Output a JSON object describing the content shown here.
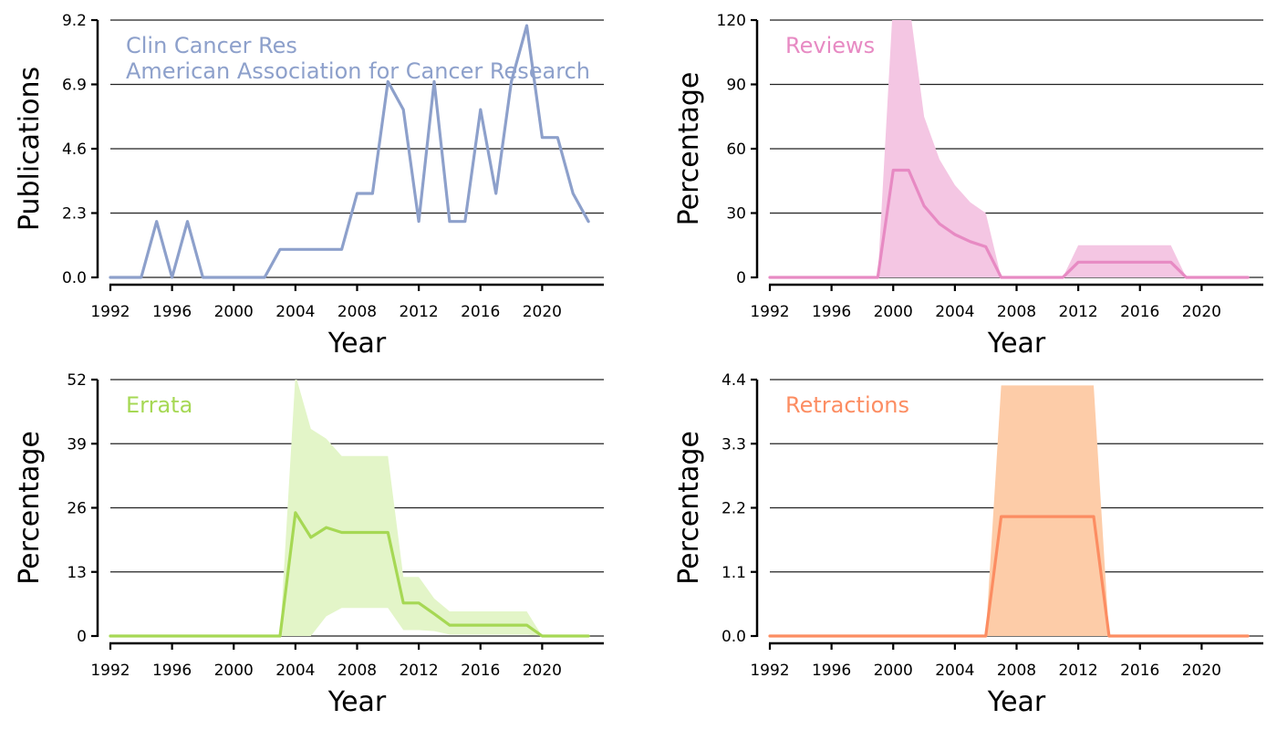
{
  "chart_data": [
    {
      "type": "line",
      "title_lines": [
        "Clin Cancer Res",
        "American Association for Cancer Research"
      ],
      "xlabel": "Year",
      "ylabel": "Publications",
      "color": "#8da0cb",
      "band_color": "",
      "x_ticks": [
        1992,
        1996,
        2000,
        2004,
        2008,
        2012,
        2016,
        2020
      ],
      "y_ticks": [
        0.0,
        2.3,
        4.6,
        6.9,
        9.2
      ],
      "y_tick_labels": [
        "0.0",
        "2.3",
        "4.6",
        "6.9",
        "9.2"
      ],
      "xlim": [
        1992,
        2024
      ],
      "ylim": [
        0,
        9.2
      ],
      "grid": "horizontal",
      "x": [
        1992,
        1993,
        1994,
        1995,
        1996,
        1997,
        1998,
        1999,
        2000,
        2001,
        2002,
        2003,
        2004,
        2005,
        2006,
        2007,
        2008,
        2009,
        2010,
        2011,
        2012,
        2013,
        2014,
        2015,
        2016,
        2017,
        2018,
        2019,
        2020,
        2021,
        2022,
        2023
      ],
      "values": [
        0,
        0,
        0,
        2,
        0,
        2,
        0,
        0,
        0,
        0,
        0,
        1,
        1,
        1,
        1,
        1,
        3,
        3,
        7,
        6,
        2,
        7,
        2,
        2,
        6,
        3,
        7,
        9,
        5,
        5,
        3,
        2
      ]
    },
    {
      "type": "line",
      "title_lines": [
        "Reviews"
      ],
      "xlabel": "Year",
      "ylabel": "Percentage",
      "color": "#e78ac3",
      "band_color": "#f4c6e3",
      "x_ticks": [
        1992,
        1996,
        2000,
        2004,
        2008,
        2012,
        2016,
        2020
      ],
      "y_ticks": [
        0,
        30,
        60,
        90,
        120
      ],
      "y_tick_labels": [
        "0",
        "30",
        "60",
        "90",
        "120"
      ],
      "xlim": [
        1992,
        2024
      ],
      "ylim": [
        0,
        120
      ],
      "grid": "horizontal",
      "x": [
        1992,
        1993,
        1994,
        1995,
        1996,
        1997,
        1998,
        1999,
        2000,
        2001,
        2002,
        2003,
        2004,
        2005,
        2006,
        2007,
        2008,
        2009,
        2010,
        2011,
        2012,
        2013,
        2014,
        2015,
        2016,
        2017,
        2018,
        2019,
        2020,
        2021,
        2022,
        2023
      ],
      "values": [
        0,
        0,
        0,
        0,
        0,
        0,
        0,
        0,
        50,
        50,
        33.3,
        25,
        20,
        16.7,
        14.3,
        0,
        0,
        0,
        0,
        0,
        7.1,
        7.1,
        7.1,
        7.1,
        7.1,
        7.1,
        7.1,
        0,
        0,
        0,
        0,
        0
      ],
      "lower": [
        0,
        0,
        0,
        0,
        0,
        0,
        0,
        0,
        0,
        0,
        0,
        0,
        0,
        0,
        0,
        0,
        0,
        0,
        0,
        0,
        0,
        0,
        0,
        0,
        0,
        0,
        0,
        0,
        0,
        0,
        0,
        0
      ],
      "upper": [
        0,
        0,
        0,
        0,
        0,
        0,
        0,
        0,
        130,
        130,
        75,
        55,
        43,
        35,
        30,
        0,
        0,
        0,
        0,
        0,
        15,
        15,
        15,
        15,
        15,
        15,
        15,
        0,
        0,
        0,
        0,
        0
      ]
    },
    {
      "type": "line",
      "title_lines": [
        "Errata"
      ],
      "xlabel": "Year",
      "ylabel": "Percentage",
      "color": "#a6d854",
      "band_color": "#e3f5c8",
      "x_ticks": [
        1992,
        1996,
        2000,
        2004,
        2008,
        2012,
        2016,
        2020
      ],
      "y_ticks": [
        0,
        13,
        26,
        39,
        52
      ],
      "y_tick_labels": [
        "0",
        "13",
        "26",
        "39",
        "52"
      ],
      "xlim": [
        1992,
        2024
      ],
      "ylim": [
        0,
        52
      ],
      "grid": "horizontal",
      "x": [
        1992,
        1993,
        1994,
        1995,
        1996,
        1997,
        1998,
        1999,
        2000,
        2001,
        2002,
        2003,
        2004,
        2005,
        2006,
        2007,
        2008,
        2009,
        2010,
        2011,
        2012,
        2013,
        2014,
        2015,
        2016,
        2017,
        2018,
        2019,
        2020,
        2021,
        2022,
        2023
      ],
      "values": [
        0,
        0,
        0,
        0,
        0,
        0,
        0,
        0,
        0,
        0,
        0,
        0,
        25,
        20,
        22,
        21,
        21,
        21,
        21,
        6.7,
        6.7,
        4.5,
        2.2,
        2.2,
        2.2,
        2.2,
        2.2,
        2.2,
        0,
        0,
        0,
        0
      ],
      "lower": [
        0,
        0,
        0,
        0,
        0,
        0,
        0,
        0,
        0,
        0,
        0,
        0,
        0,
        0,
        4,
        5.7,
        5.7,
        5.7,
        5.7,
        1.2,
        1.2,
        1,
        0.3,
        0.3,
        0.3,
        0.3,
        0.3,
        0.3,
        0,
        0,
        0,
        0
      ],
      "upper": [
        0,
        0,
        0,
        0,
        0,
        0,
        0,
        0,
        0,
        0,
        0,
        0,
        53,
        42,
        40,
        36.5,
        36.5,
        36.5,
        36.5,
        12,
        12,
        7.6,
        5,
        5,
        5,
        5,
        5,
        5,
        0,
        0,
        0,
        0
      ]
    },
    {
      "type": "line",
      "title_lines": [
        "Retractions"
      ],
      "xlabel": "Year",
      "ylabel": "Percentage",
      "color": "#fc8d62",
      "band_color": "#fdcca8",
      "x_ticks": [
        1992,
        1996,
        2000,
        2004,
        2008,
        2012,
        2016,
        2020
      ],
      "y_ticks": [
        0.0,
        1.1,
        2.2,
        3.3,
        4.4
      ],
      "y_tick_labels": [
        "0.0",
        "1.1",
        "2.2",
        "3.3",
        "4.4"
      ],
      "xlim": [
        1992,
        2024
      ],
      "ylim": [
        0,
        4.4
      ],
      "grid": "horizontal",
      "x": [
        1992,
        1993,
        1994,
        1995,
        1996,
        1997,
        1998,
        1999,
        2000,
        2001,
        2002,
        2003,
        2004,
        2005,
        2006,
        2007,
        2008,
        2009,
        2010,
        2011,
        2012,
        2013,
        2014,
        2015,
        2016,
        2017,
        2018,
        2019,
        2020,
        2021,
        2022,
        2023
      ],
      "values": [
        0,
        0,
        0,
        0,
        0,
        0,
        0,
        0,
        0,
        0,
        0,
        0,
        0,
        0,
        0,
        2.05,
        2.05,
        2.05,
        2.05,
        2.05,
        2.05,
        2.05,
        0,
        0,
        0,
        0,
        0,
        0,
        0,
        0,
        0,
        0
      ],
      "lower": [
        0,
        0,
        0,
        0,
        0,
        0,
        0,
        0,
        0,
        0,
        0,
        0,
        0,
        0,
        0,
        0,
        0,
        0,
        0,
        0,
        0,
        0,
        0,
        0,
        0,
        0,
        0,
        0,
        0,
        0,
        0,
        0
      ],
      "upper": [
        0,
        0,
        0,
        0,
        0,
        0,
        0,
        0,
        0,
        0,
        0,
        0,
        0,
        0,
        0,
        4.3,
        4.3,
        4.3,
        4.3,
        4.3,
        4.3,
        4.3,
        0,
        0,
        0,
        0,
        0,
        0,
        0,
        0,
        0,
        0
      ]
    }
  ]
}
